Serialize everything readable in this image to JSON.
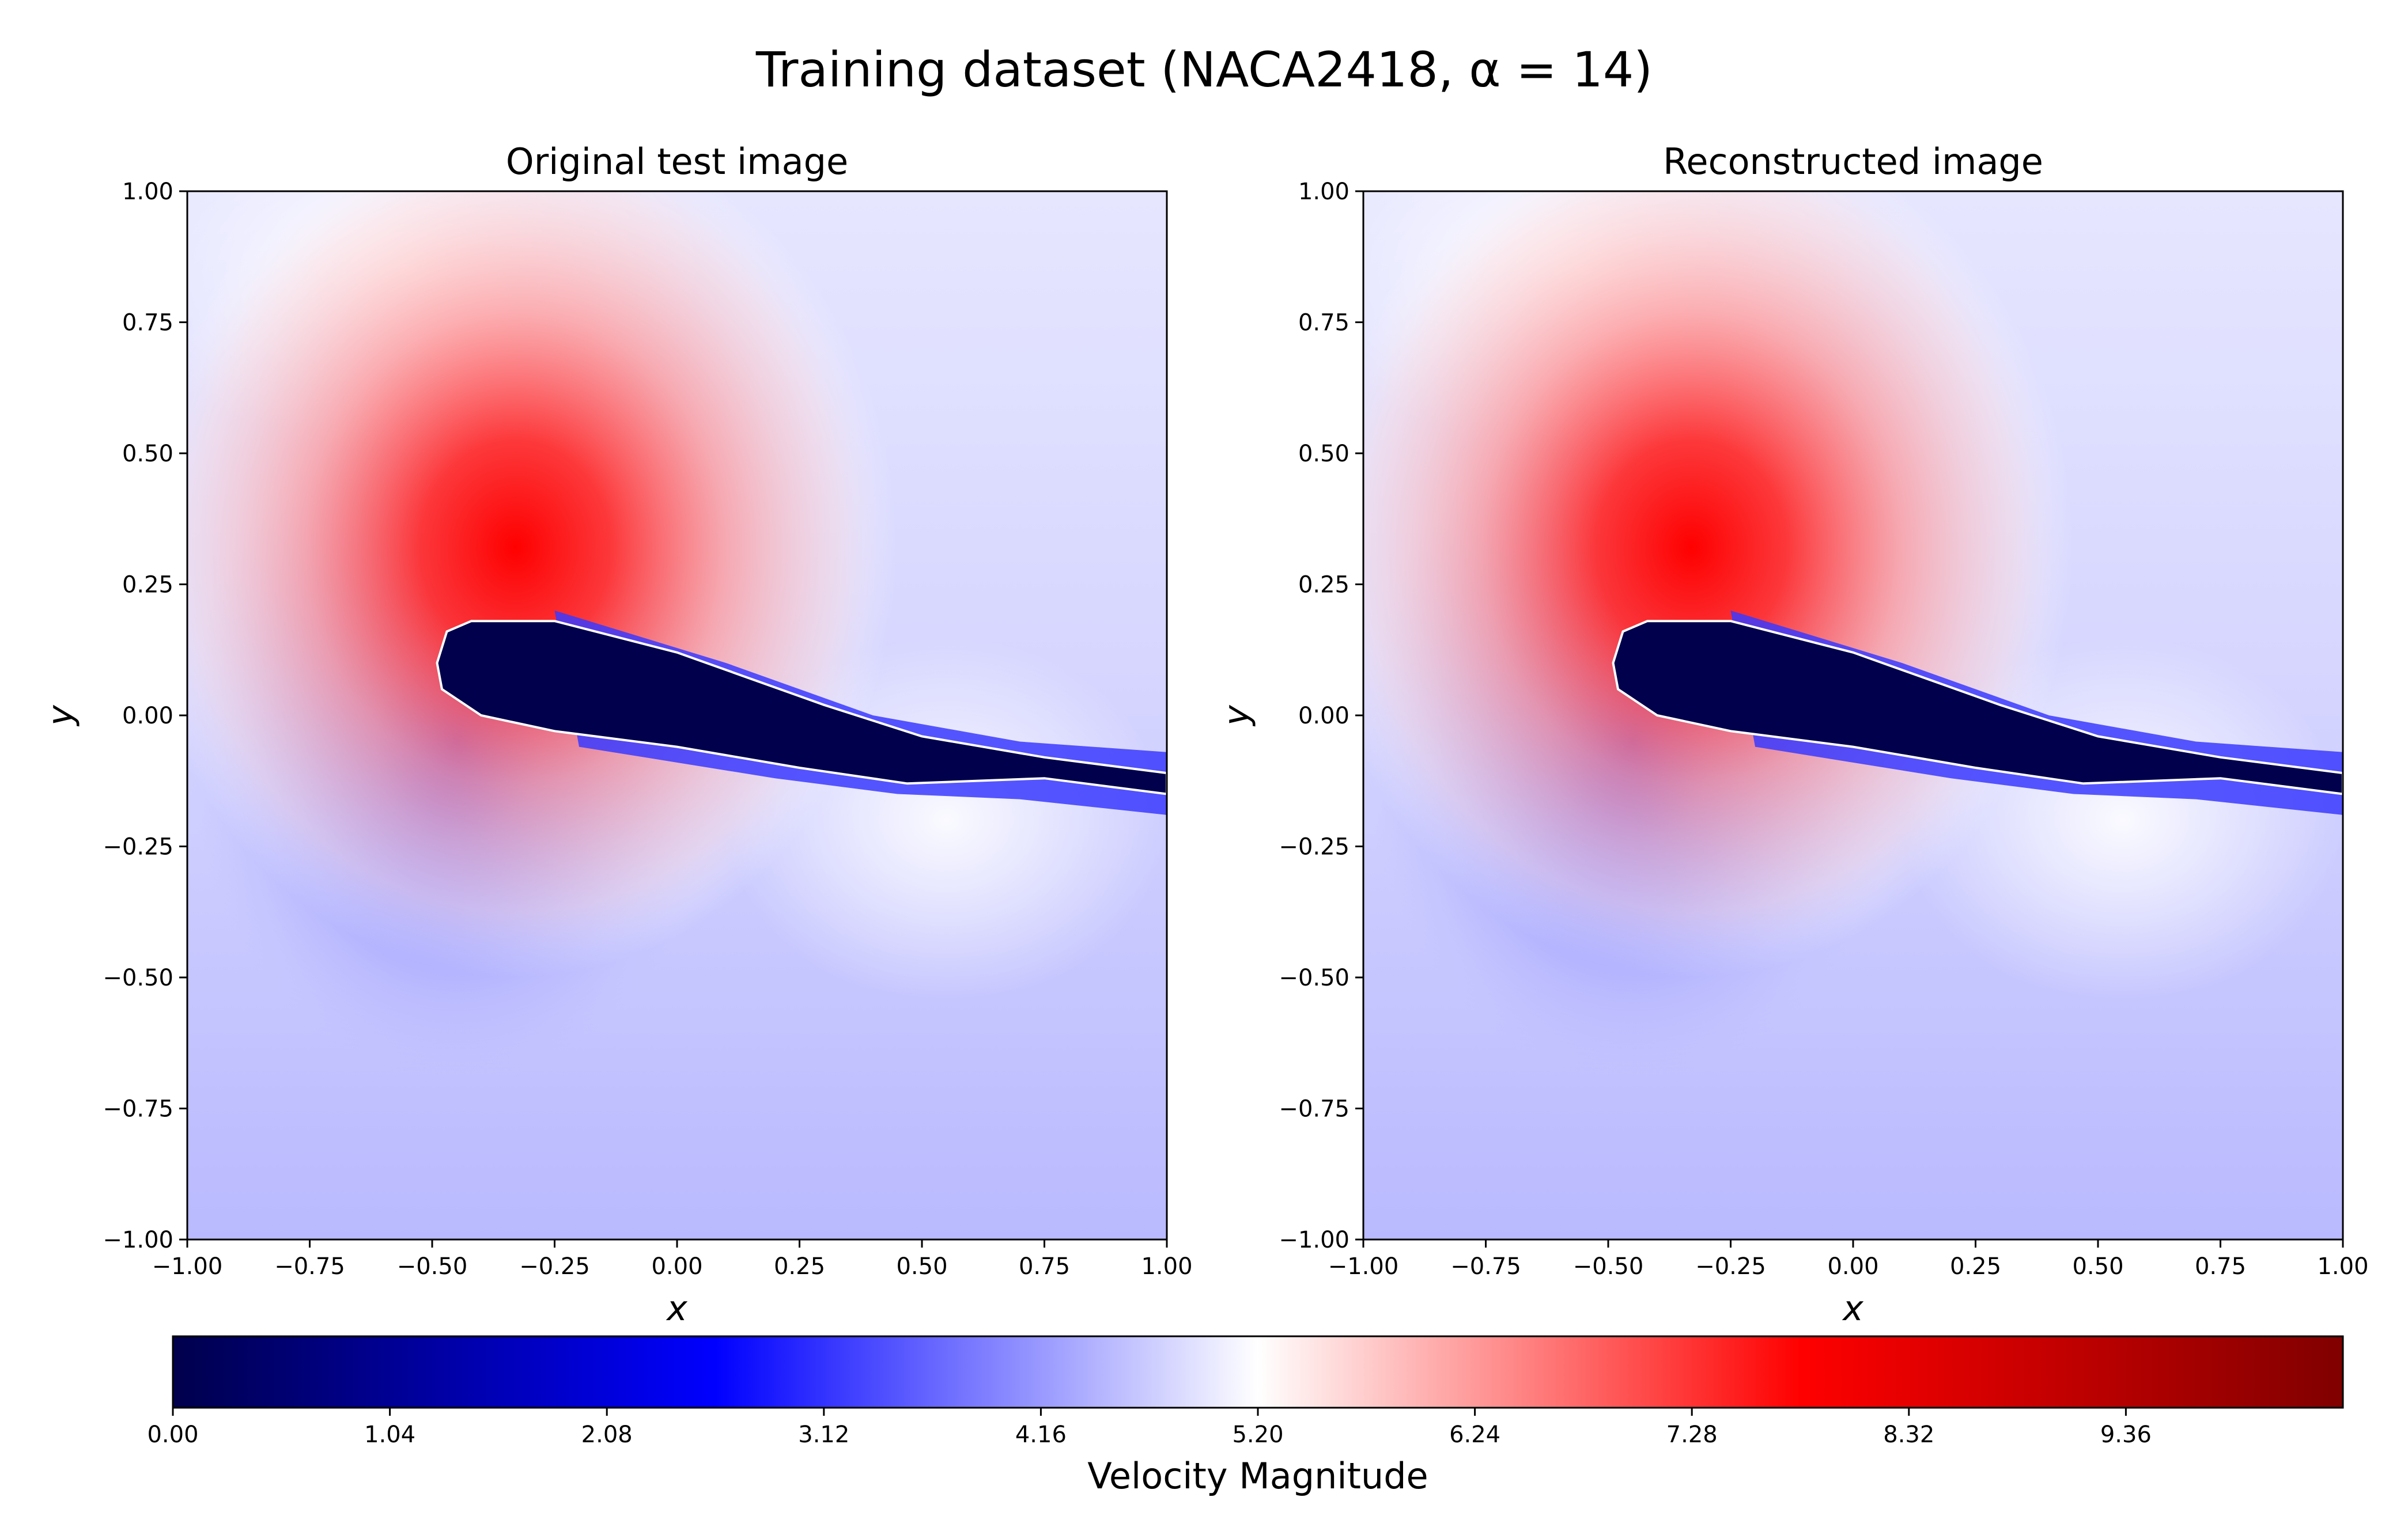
{
  "figure": {
    "title": "Training dataset (NACA2418, α = 14)"
  },
  "chart_data": [
    {
      "type": "heatmap",
      "title": "Original test image",
      "xlabel": "x",
      "ylabel": "y",
      "xlim": [
        -1.0,
        1.0
      ],
      "ylim": [
        -1.0,
        1.0
      ],
      "xticks": [
        "−1.00",
        "−0.75",
        "−0.50",
        "−0.25",
        "0.00",
        "0.25",
        "0.50",
        "0.75",
        "1.00"
      ],
      "yticks": [
        "−1.00",
        "−0.75",
        "−0.50",
        "−0.25",
        "0.00",
        "0.25",
        "0.50",
        "0.75",
        "1.00"
      ],
      "xtick_values": [
        -1.0,
        -0.75,
        -0.5,
        -0.25,
        0.0,
        0.25,
        0.5,
        0.75,
        1.0
      ],
      "ytick_values": [
        -1.0,
        -0.75,
        -0.5,
        -0.25,
        0.0,
        0.25,
        0.5,
        0.75,
        1.0
      ],
      "field": "velocity magnitude around airfoil (min 0.00 inside airfoil, max ≈ 8.5 above leading edge, free stream ≈ 4.7)",
      "airfoil_outline_xy": [
        [
          -0.49,
          0.1
        ],
        [
          -0.47,
          0.16
        ],
        [
          -0.42,
          0.18
        ],
        [
          -0.25,
          0.18
        ],
        [
          0.0,
          0.12
        ],
        [
          0.3,
          0.02
        ],
        [
          0.5,
          -0.04
        ],
        [
          0.75,
          -0.08
        ],
        [
          1.0,
          -0.11
        ],
        [
          1.0,
          -0.15
        ],
        [
          0.75,
          -0.12
        ],
        [
          0.47,
          -0.13
        ],
        [
          0.25,
          -0.1
        ],
        [
          0.0,
          -0.06
        ],
        [
          -0.25,
          -0.03
        ],
        [
          -0.4,
          0.0
        ],
        [
          -0.48,
          0.05
        ]
      ]
    },
    {
      "type": "heatmap",
      "title": "Reconstructed image",
      "xlabel": "x",
      "ylabel": "y",
      "xlim": [
        -1.0,
        1.0
      ],
      "ylim": [
        -1.0,
        1.0
      ],
      "xticks": [
        "−1.00",
        "−0.75",
        "−0.50",
        "−0.25",
        "0.00",
        "0.25",
        "0.50",
        "0.75",
        "1.00"
      ],
      "yticks": [
        "−1.00",
        "−0.75",
        "−0.50",
        "−0.25",
        "0.00",
        "0.25",
        "0.50",
        "0.75",
        "1.00"
      ],
      "xtick_values": [
        -1.0,
        -0.75,
        -0.5,
        -0.25,
        0.0,
        0.25,
        0.5,
        0.75,
        1.0
      ],
      "ytick_values": [
        -1.0,
        -0.75,
        -0.5,
        -0.25,
        0.0,
        0.25,
        0.5,
        0.75,
        1.0
      ],
      "field": "reconstructed velocity magnitude, visually near-identical to original with slight noise",
      "airfoil_outline_xy": [
        [
          -0.49,
          0.1
        ],
        [
          -0.47,
          0.16
        ],
        [
          -0.42,
          0.18
        ],
        [
          -0.25,
          0.18
        ],
        [
          0.0,
          0.12
        ],
        [
          0.3,
          0.02
        ],
        [
          0.5,
          -0.04
        ],
        [
          0.75,
          -0.08
        ],
        [
          1.0,
          -0.11
        ],
        [
          1.0,
          -0.15
        ],
        [
          0.75,
          -0.12
        ],
        [
          0.47,
          -0.13
        ],
        [
          0.25,
          -0.1
        ],
        [
          0.0,
          -0.06
        ],
        [
          -0.25,
          -0.03
        ],
        [
          -0.4,
          0.0
        ],
        [
          -0.48,
          0.05
        ]
      ]
    }
  ],
  "colorbar": {
    "label": "Velocity Magnitude",
    "min": 0.0,
    "max": 10.4,
    "ticks": [
      "0.00",
      "1.04",
      "2.08",
      "3.12",
      "4.16",
      "5.20",
      "6.24",
      "7.28",
      "8.32",
      "9.36"
    ],
    "tick_values": [
      0.0,
      1.04,
      2.08,
      3.12,
      4.16,
      5.2,
      6.24,
      7.28,
      8.32,
      9.36
    ],
    "colormap": "seismic",
    "colors": [
      "#00004c",
      "#0000ff",
      "#ffffff",
      "#ff0000",
      "#800000"
    ]
  }
}
